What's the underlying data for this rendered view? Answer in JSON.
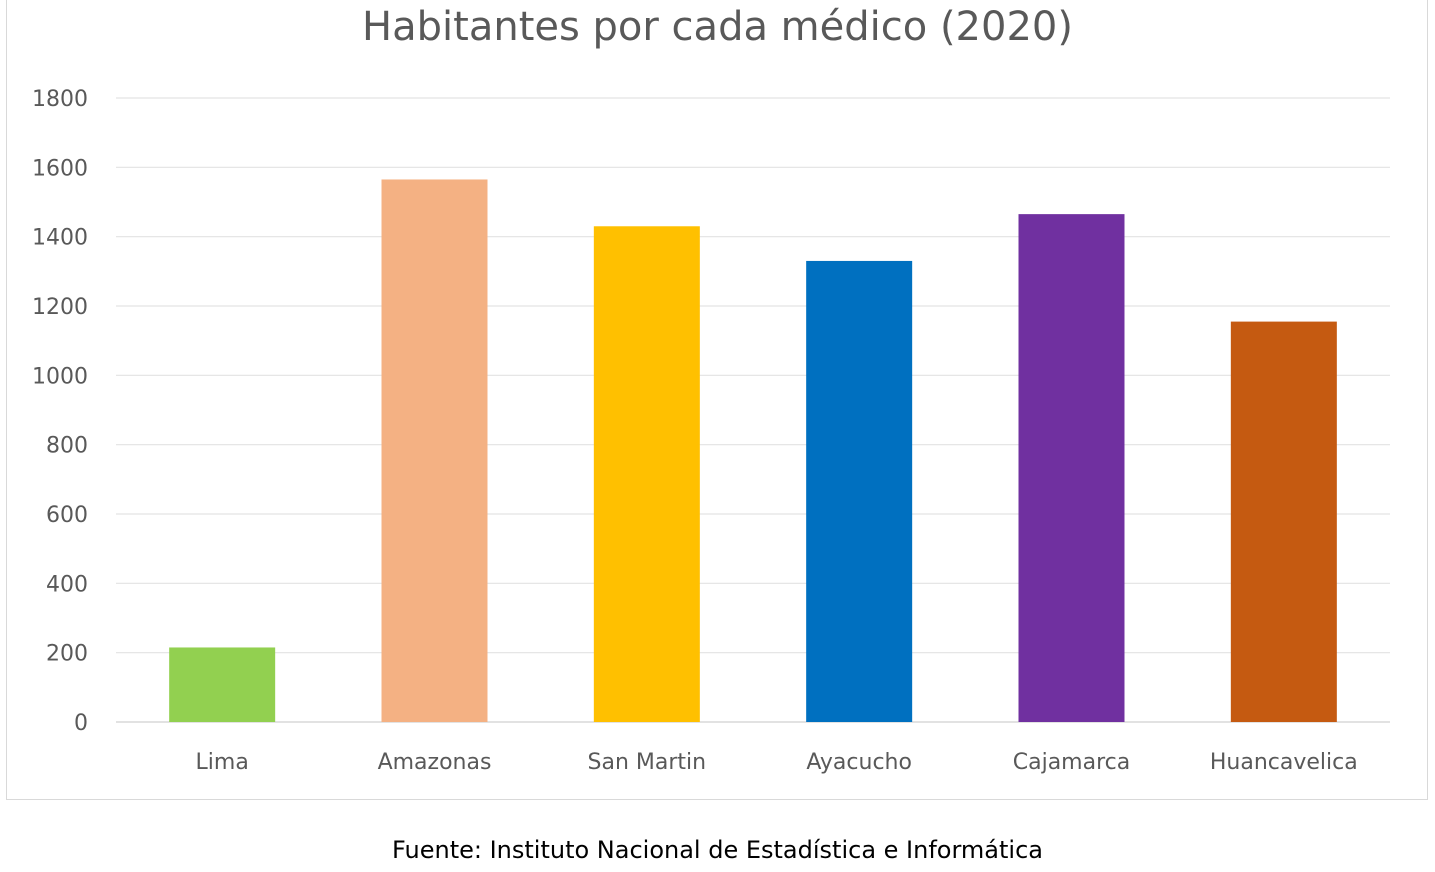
{
  "chart_data": {
    "type": "bar",
    "title": "Habitantes por cada médico (2020)",
    "xlabel": "",
    "ylabel": "",
    "categories": [
      "Lima",
      "Amazonas",
      "San Martin",
      "Ayacucho",
      "Cajamarca",
      "Huancavelica"
    ],
    "values": [
      215,
      1565,
      1430,
      1330,
      1465,
      1155
    ],
    "colors": [
      "#92d050",
      "#f4b183",
      "#ffc000",
      "#0070c0",
      "#7030a0",
      "#c55a11"
    ],
    "ylim": [
      0,
      1800
    ],
    "yticks": [
      0,
      200,
      400,
      600,
      800,
      1000,
      1200,
      1400,
      1600,
      1800
    ],
    "grid": true,
    "legend": "none"
  },
  "footer": {
    "source": "Fuente: Instituto Nacional de Estadística e Informática"
  }
}
